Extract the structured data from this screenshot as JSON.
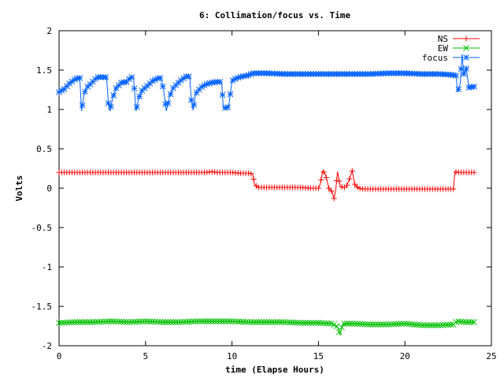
{
  "chart_data": {
    "type": "line",
    "title": "6: Collimation/focus vs. Time",
    "xlabel": "time (Elapse Hours)",
    "ylabel": "Volts",
    "xlim": [
      0,
      25
    ],
    "ylim": [
      -2,
      2
    ],
    "x_ticks": [
      0,
      5,
      10,
      15,
      20,
      25
    ],
    "x_tick_labels": [
      "0",
      "5",
      "10",
      "15",
      "20",
      "25"
    ],
    "y_ticks": [
      -2,
      -1.5,
      -1,
      -0.5,
      0,
      0.5,
      1,
      1.5,
      2
    ],
    "y_tick_labels": [
      "-2",
      "-1.5",
      "-1",
      "-0.5",
      "0",
      "0.5",
      "1",
      "1.5",
      "2"
    ],
    "grid": false,
    "legend_position": "top-right",
    "series": [
      {
        "name": "NS",
        "color": "#ff0000",
        "marker": "plus",
        "x": [
          0,
          0.5,
          1,
          1.5,
          2,
          2.5,
          3,
          3.5,
          4,
          4.5,
          5,
          5.5,
          6,
          6.5,
          7,
          7.5,
          8,
          8.5,
          8.8,
          9.2,
          9.5,
          10,
          10.5,
          11,
          11.2,
          11.3,
          11.5,
          12,
          12.5,
          13,
          13.5,
          14,
          14.5,
          15,
          15.1,
          15.25,
          15.4,
          15.6,
          15.8,
          15.9,
          16.0,
          16.1,
          16.25,
          16.4,
          16.6,
          16.8,
          16.95,
          17.1,
          17.3,
          17.6,
          18,
          18.5,
          19,
          19.5,
          20,
          20.5,
          21,
          21.5,
          22,
          22.5,
          22.8,
          22.9,
          23.1,
          23.5,
          24
        ],
        "y": [
          0.2,
          0.2,
          0.2,
          0.2,
          0.2,
          0.2,
          0.2,
          0.2,
          0.2,
          0.2,
          0.2,
          0.2,
          0.2,
          0.2,
          0.2,
          0.2,
          0.2,
          0.2,
          0.21,
          0.2,
          0.2,
          0.2,
          0.19,
          0.19,
          0.18,
          0.05,
          0.01,
          0.01,
          0.01,
          0.01,
          0.01,
          0.01,
          0.0,
          0.0,
          0.05,
          0.22,
          0.18,
          0.0,
          -0.05,
          -0.13,
          -0.02,
          0.21,
          0.03,
          0.01,
          0.01,
          0.12,
          0.22,
          0.05,
          0.0,
          -0.01,
          -0.01,
          -0.01,
          -0.01,
          -0.01,
          -0.01,
          -0.01,
          -0.01,
          -0.01,
          -0.01,
          -0.01,
          -0.01,
          0.21,
          0.2,
          0.2,
          0.2
        ]
      },
      {
        "name": "EW",
        "color": "#00c000",
        "marker": "x",
        "x": [
          0,
          1,
          2,
          3,
          4,
          5,
          6,
          7,
          8,
          9,
          10,
          11,
          12,
          13,
          14,
          15,
          15.8,
          16.1,
          16.25,
          16.4,
          17,
          18,
          19,
          20,
          21,
          22,
          22.8,
          23,
          23.5,
          24
        ],
        "y": [
          -1.71,
          -1.7,
          -1.7,
          -1.69,
          -1.7,
          -1.69,
          -1.7,
          -1.7,
          -1.69,
          -1.69,
          -1.69,
          -1.7,
          -1.7,
          -1.7,
          -1.71,
          -1.71,
          -1.72,
          -1.76,
          -1.86,
          -1.72,
          -1.72,
          -1.73,
          -1.73,
          -1.72,
          -1.74,
          -1.74,
          -1.73,
          -1.69,
          -1.7,
          -1.7
        ]
      },
      {
        "name": "focus",
        "color": "#0060ff",
        "marker": "star",
        "x": [
          0,
          0.3,
          0.6,
          0.9,
          1.1,
          1.2,
          1.3,
          1.45,
          1.6,
          1.9,
          2.2,
          2.6,
          2.75,
          2.85,
          2.95,
          3.1,
          3.3,
          3.6,
          3.9,
          4.15,
          4.3,
          4.45,
          4.6,
          4.8,
          5.1,
          5.4,
          5.75,
          5.9,
          6.05,
          6.2,
          6.35,
          6.55,
          6.8,
          7.1,
          7.35,
          7.55,
          7.65,
          7.75,
          7.9,
          8.2,
          8.5,
          8.8,
          9.1,
          9.4,
          9.5,
          9.6,
          9.8,
          10.0,
          10.1,
          10.3,
          10.6,
          10.9,
          11.2,
          11.5,
          12,
          13,
          14,
          15,
          16,
          17,
          18,
          19,
          20,
          21,
          22,
          22.7,
          22.95,
          23.05,
          23.2,
          23.3,
          23.4,
          23.55,
          23.7,
          24
        ],
        "y": [
          1.22,
          1.26,
          1.33,
          1.38,
          1.4,
          1.4,
          0.98,
          1.2,
          1.28,
          1.34,
          1.41,
          1.41,
          1.41,
          1.08,
          0.98,
          1.15,
          1.27,
          1.34,
          1.35,
          1.41,
          1.41,
          0.98,
          1.14,
          1.24,
          1.3,
          1.36,
          1.4,
          1.4,
          1.24,
          0.98,
          1.13,
          1.26,
          1.32,
          1.38,
          1.42,
          1.42,
          1.12,
          0.99,
          1.2,
          1.28,
          1.32,
          1.34,
          1.35,
          1.35,
          1.02,
          1.02,
          1.03,
          1.36,
          1.38,
          1.4,
          1.42,
          1.43,
          1.46,
          1.46,
          1.46,
          1.45,
          1.45,
          1.45,
          1.45,
          1.45,
          1.45,
          1.46,
          1.46,
          1.45,
          1.45,
          1.44,
          1.43,
          1.22,
          1.33,
          1.7,
          1.45,
          1.52,
          1.28,
          1.29
        ]
      }
    ]
  }
}
